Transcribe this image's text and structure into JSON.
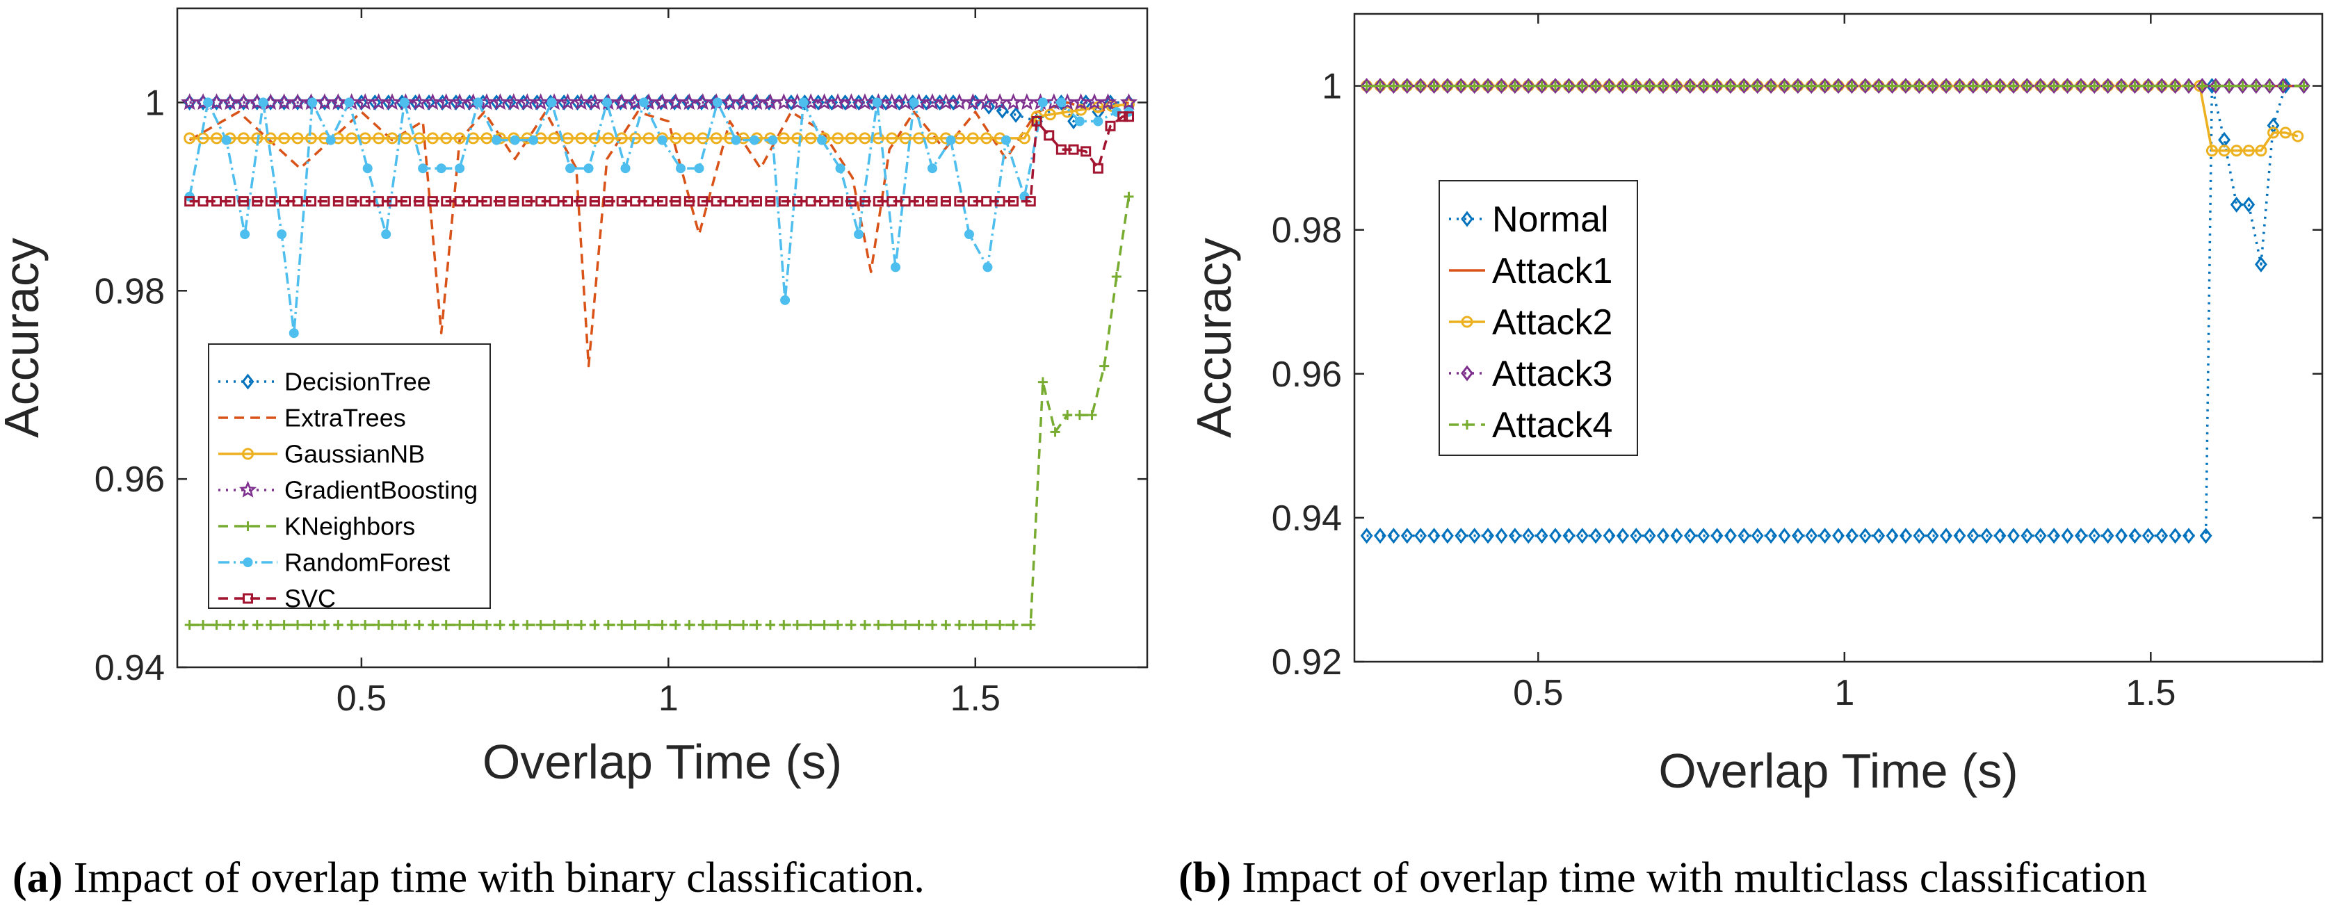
{
  "chart_data": [
    {
      "type": "line",
      "xlabel": "Overlap Time (s)",
      "ylabel": "Accuracy",
      "xlim": [
        0.2,
        1.78
      ],
      "ylim": [
        0.94,
        1.01
      ],
      "xticks": [
        0.5,
        1,
        1.5
      ],
      "xtick_labels": [
        "0.5",
        "1",
        "1.5"
      ],
      "yticks": [
        0.94,
        0.96,
        0.98,
        1
      ],
      "ytick_labels": [
        "0.94",
        "0.96",
        "0.98",
        "1"
      ],
      "grid": false,
      "legend_position": "left",
      "caption_letter": "(a)",
      "caption_text": " Impact of overlap time with binary classification.",
      "series": [
        {
          "name": "DecisionTree",
          "color": "#0072BD",
          "dash": "3,8",
          "marker": "diamond",
          "x": [
            0.22,
            0.5,
            0.9,
            1.2,
            1.5,
            1.6,
            1.64,
            1.66,
            1.68,
            1.7,
            1.72,
            1.75
          ],
          "y": [
            1.0,
            1.0,
            1.0,
            1.0,
            1.0,
            0.998,
            1.0,
            0.998,
            1.0,
            0.999,
            1.0,
            1.0
          ]
        },
        {
          "name": "ExtraTrees",
          "color": "#D95319",
          "dash": "14,9",
          "marker": "none",
          "x": [
            0.22,
            0.3,
            0.4,
            0.5,
            0.55,
            0.6,
            0.63,
            0.66,
            0.7,
            0.75,
            0.8,
            0.85,
            0.87,
            0.9,
            0.95,
            1.0,
            1.05,
            1.1,
            1.15,
            1.2,
            1.25,
            1.3,
            1.33,
            1.36,
            1.4,
            1.45,
            1.5,
            1.55,
            1.6,
            1.65,
            1.7,
            1.75
          ],
          "y": [
            0.996,
            0.999,
            0.993,
            0.999,
            0.996,
            0.998,
            0.9755,
            0.996,
            0.999,
            0.994,
            0.999,
            0.993,
            0.972,
            0.994,
            0.999,
            0.998,
            0.986,
            0.998,
            0.993,
            0.999,
            0.997,
            0.992,
            0.982,
            0.995,
            0.999,
            0.995,
            0.999,
            0.994,
            0.999,
            1.0,
            0.999,
            1.0
          ]
        },
        {
          "name": "GaussianNB",
          "color": "#EDB120",
          "dash": "",
          "marker": "circle",
          "x": [
            0.22,
            1.58,
            1.6,
            1.65,
            1.7,
            1.75
          ],
          "y": [
            0.9962,
            0.9962,
            0.9985,
            0.999,
            0.9995,
            0.9998
          ]
        },
        {
          "name": "GradientBoosting",
          "color": "#7E2F8E",
          "dash": "3,8",
          "marker": "star",
          "x": [
            0.22,
            1.75
          ],
          "y": [
            1.0,
            1.0
          ]
        },
        {
          "name": "KNeighbors",
          "color": "#77AC30",
          "dash": "14,9",
          "marker": "plus",
          "x": [
            0.22,
            1.59,
            1.61,
            1.63,
            1.65,
            1.67,
            1.69,
            1.71,
            1.73,
            1.75
          ],
          "y": [
            0.9445,
            0.9445,
            0.9703,
            0.965,
            0.9668,
            0.9668,
            0.9668,
            0.972,
            0.9815,
            0.99
          ]
        },
        {
          "name": "RandomForest",
          "color": "#4DBEEE",
          "dash": "16,6,3,6",
          "marker": "dot",
          "x": [
            0.22,
            0.25,
            0.28,
            0.31,
            0.34,
            0.37,
            0.39,
            0.42,
            0.45,
            0.48,
            0.51,
            0.54,
            0.57,
            0.6,
            0.63,
            0.66,
            0.69,
            0.72,
            0.75,
            0.78,
            0.81,
            0.84,
            0.87,
            0.9,
            0.93,
            0.96,
            0.99,
            1.02,
            1.05,
            1.08,
            1.11,
            1.14,
            1.17,
            1.19,
            1.22,
            1.25,
            1.28,
            1.31,
            1.34,
            1.37,
            1.4,
            1.43,
            1.46,
            1.49,
            1.52,
            1.55,
            1.58,
            1.61,
            1.64,
            1.67,
            1.7,
            1.73,
            1.75
          ],
          "y": [
            0.99,
            1.0,
            0.996,
            0.986,
            1.0,
            0.986,
            0.9755,
            1.0,
            0.996,
            1.0,
            0.993,
            0.986,
            1.0,
            0.993,
            0.993,
            0.993,
            1.0,
            0.996,
            0.996,
            0.996,
            1.0,
            0.993,
            0.993,
            1.0,
            0.993,
            1.0,
            0.996,
            0.993,
            0.993,
            1.0,
            0.996,
            0.996,
            0.996,
            0.979,
            1.0,
            0.996,
            0.993,
            0.986,
            1.0,
            0.9825,
            1.0,
            0.993,
            0.996,
            0.986,
            0.9825,
            0.996,
            0.99,
            1.0,
            1.0,
            0.998,
            0.998,
            0.999,
            0.999
          ]
        },
        {
          "name": "SVC",
          "color": "#A2142F",
          "dash": "14,9",
          "marker": "square",
          "x": [
            0.22,
            1.59,
            1.6,
            1.62,
            1.64,
            1.66,
            1.68,
            1.7,
            1.72,
            1.74,
            1.75
          ],
          "y": [
            0.9895,
            0.9895,
            0.998,
            0.9965,
            0.995,
            0.995,
            0.9948,
            0.993,
            0.9975,
            0.9985,
            0.9985
          ]
        }
      ]
    },
    {
      "type": "line",
      "xlabel": "Overlap Time (s)",
      "ylabel": "Accuracy",
      "xlim": [
        0.2,
        1.78
      ],
      "ylim": [
        0.92,
        1.01
      ],
      "xticks": [
        0.5,
        1,
        1.5
      ],
      "xtick_labels": [
        "0.5",
        "1",
        "1.5"
      ],
      "yticks": [
        0.92,
        0.94,
        0.96,
        0.98,
        1
      ],
      "ytick_labels": [
        "0.92",
        "0.94",
        "0.96",
        "0.98",
        "1"
      ],
      "grid": false,
      "legend_position": "left",
      "caption_letter": "(b)",
      "caption_text": " Impact of overlap time with multiclass classification",
      "series": [
        {
          "name": "Normal",
          "color": "#0072BD",
          "dash": "3,8",
          "marker": "diamond",
          "x": [
            0.22,
            1.59,
            1.6,
            1.62,
            1.64,
            1.66,
            1.68,
            1.7,
            1.72,
            1.75
          ],
          "y": [
            0.9375,
            0.9375,
            1.0,
            0.9925,
            0.9835,
            0.9835,
            0.9752,
            0.9945,
            1.0,
            1.0
          ]
        },
        {
          "name": "Attack1",
          "color": "#D95319",
          "dash": "",
          "marker": "none",
          "x": [
            0.22,
            1.75
          ],
          "y": [
            1.0,
            1.0
          ]
        },
        {
          "name": "Attack2",
          "color": "#EDB120",
          "dash": "",
          "marker": "circle",
          "x": [
            0.22,
            1.58,
            1.6,
            1.62,
            1.64,
            1.66,
            1.68,
            1.7,
            1.72,
            1.74
          ],
          "y": [
            1.0,
            1.0,
            0.991,
            0.991,
            0.991,
            0.991,
            0.991,
            0.9935,
            0.9935,
            0.993
          ]
        },
        {
          "name": "Attack3",
          "color": "#7E2F8E",
          "dash": "3,8",
          "marker": "diamond",
          "x": [
            0.22,
            1.75
          ],
          "y": [
            1.0,
            1.0
          ]
        },
        {
          "name": "Attack4",
          "color": "#77AC30",
          "dash": "14,9",
          "marker": "plus",
          "x": [
            0.22,
            1.75
          ],
          "y": [
            1.0,
            1.0
          ]
        }
      ]
    }
  ]
}
